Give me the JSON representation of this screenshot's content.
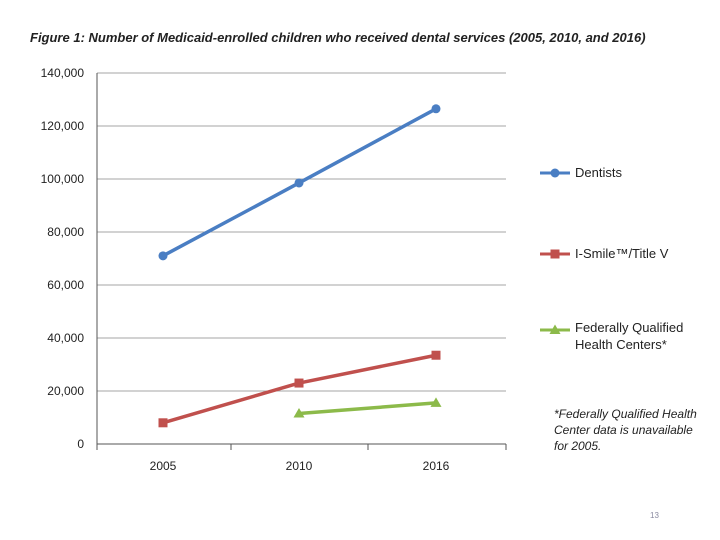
{
  "chart_data": {
    "type": "line",
    "title": "Figure 1: Number of Medicaid-enrolled children who received dental services (2005, 2010, and 2016)",
    "categories": [
      "2005",
      "2010",
      "2016"
    ],
    "series": [
      {
        "name": "Dentists",
        "color": "#4a7ec3",
        "marker": "circle",
        "values": [
          71000,
          98500,
          126500
        ]
      },
      {
        "name": "I-Smile™/Title V",
        "color": "#c0504d",
        "marker": "square",
        "values": [
          8000,
          23000,
          33500
        ]
      },
      {
        "name": "Federally Qualified Health Centers*",
        "legend_lines": [
          "Federally Qualified",
          "Health Centers*"
        ],
        "color": "#8cba4a",
        "marker": "triangle",
        "values": [
          null,
          11500,
          15500
        ]
      }
    ],
    "ylim": [
      0,
      140000
    ],
    "yticks": [
      0,
      20000,
      40000,
      60000,
      80000,
      100000,
      120000,
      140000
    ],
    "ytick_labels": [
      "0",
      "20,000",
      "40,000",
      "60,000",
      "80,000",
      "100,000",
      "120,000",
      "140,000"
    ],
    "grid": true,
    "legend_position": "right",
    "xlabel": "",
    "ylabel": ""
  },
  "footnote": [
    "*Federally Qualified Health",
    "Center data is unavailable",
    "for 2005."
  ],
  "page_number": "13"
}
